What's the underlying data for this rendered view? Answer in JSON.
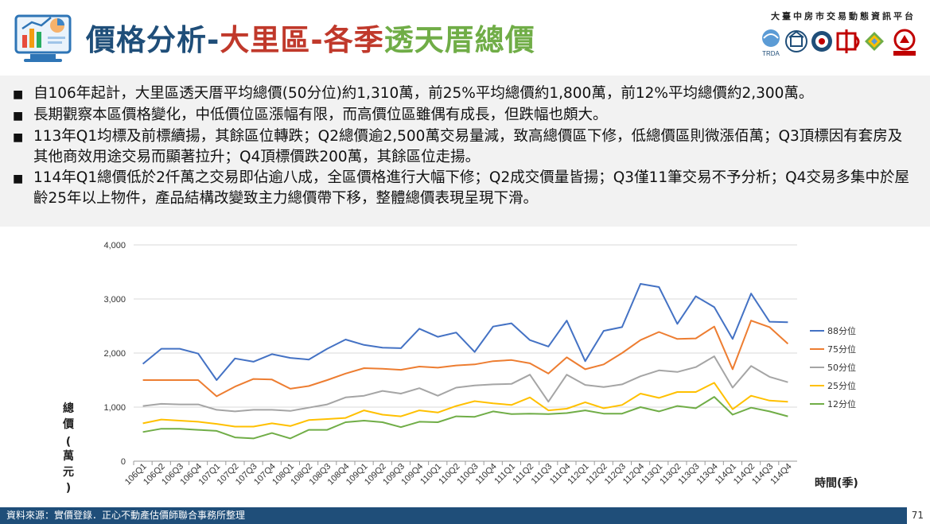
{
  "header": {
    "title_part1": "價格分析-",
    "title_part2": "大里區-各季",
    "title_part3": "透天厝總價",
    "platform": "大臺中房市交易動態資訊平台",
    "logo_trda": "TRDA"
  },
  "bullets": [
    "自106年起計，大里區透天厝平均總價(50分位)約1,310萬，前25%平均總價約1,800萬，前12%平均總價約2,300萬。",
    "長期觀察本區價格變化，中低價位區漲幅有限，而高價位區雖偶有成長，但跌幅也頗大。",
    "113年Q1均標及前標續揚，其餘區位轉跌；Q2總價逾2,500萬交易量減，致高總價區下修，低總價區則微漲佰萬；Q3頂標因有套房及其他商效用途交易而顯著拉升；Q4頂標價跌200萬，其餘區位走揚。",
    "114年Q1總價低於2仟萬之交易即佔逾八成，全區價格進行大幅下修；Q2成交價量皆揚；Q3僅11筆交易不予分析；Q4交易多集中於屋齡25年以上物件，產品結構改變致主力總價帶下移，整體總價表現呈現下滑。"
  ],
  "footer": {
    "source": "資料來源：實價登錄．正心不動產估價師聯合事務所整理",
    "page": "71"
  },
  "chart_data": {
    "type": "line",
    "ylabel": "總價(萬元)",
    "xlabel": "時間(季)",
    "ylim": [
      0,
      4000
    ],
    "yticks": [
      "0",
      "1,000",
      "2,000",
      "3,000",
      "4,000"
    ],
    "grid": "horizontal",
    "legend_position": "right",
    "categories": [
      "106Q1",
      "106Q2",
      "106Q3",
      "106Q4",
      "107Q1",
      "107Q2",
      "107Q3",
      "107Q4",
      "108Q1",
      "108Q2",
      "108Q3",
      "108Q4",
      "109Q1",
      "109Q2",
      "109Q3",
      "109Q4",
      "110Q1",
      "110Q2",
      "110Q3",
      "110Q4",
      "111Q1",
      "111Q2",
      "111Q3",
      "111Q4",
      "112Q1",
      "112Q2",
      "112Q3",
      "112Q4",
      "113Q1",
      "113Q2",
      "113Q3",
      "113Q4",
      "114Q1",
      "114Q2",
      "114Q3",
      "114Q4"
    ],
    "series": [
      {
        "name": "88分位",
        "color": "#4472c4",
        "values": [
          1800,
          2080,
          2080,
          1990,
          1500,
          1900,
          1840,
          1980,
          1910,
          1880,
          2080,
          2250,
          2150,
          2100,
          2090,
          2450,
          2300,
          2380,
          2020,
          2490,
          2550,
          2240,
          2120,
          2600,
          1850,
          2410,
          2480,
          3280,
          3220,
          2540,
          3050,
          2850,
          2260,
          3100,
          2580,
          2570
        ]
      },
      {
        "name": "75分位",
        "color": "#ed7d31",
        "values": [
          1500,
          1500,
          1500,
          1500,
          1200,
          1380,
          1520,
          1510,
          1340,
          1390,
          1500,
          1620,
          1720,
          1710,
          1690,
          1750,
          1730,
          1770,
          1790,
          1850,
          1870,
          1810,
          1620,
          1920,
          1700,
          1790,
          2000,
          2240,
          2390,
          2260,
          2270,
          2490,
          1700,
          2600,
          2480,
          2170
        ]
      },
      {
        "name": "50分位",
        "color": "#a5a5a5",
        "values": [
          1020,
          1060,
          1050,
          1050,
          950,
          920,
          950,
          950,
          930,
          990,
          1050,
          1180,
          1210,
          1300,
          1250,
          1350,
          1210,
          1360,
          1400,
          1420,
          1430,
          1600,
          1100,
          1600,
          1410,
          1370,
          1420,
          1570,
          1680,
          1650,
          1740,
          1940,
          1360,
          1760,
          1560,
          1460
        ]
      },
      {
        "name": "25分位",
        "color": "#ffc000",
        "values": [
          700,
          770,
          750,
          730,
          690,
          640,
          640,
          700,
          650,
          760,
          780,
          800,
          940,
          860,
          830,
          940,
          900,
          1020,
          1110,
          1070,
          1040,
          1180,
          940,
          970,
          1090,
          980,
          1040,
          1250,
          1170,
          1280,
          1280,
          1450,
          960,
          1210,
          1120,
          1100
        ]
      },
      {
        "name": "12分位",
        "color": "#70ad47",
        "values": [
          540,
          600,
          600,
          580,
          560,
          440,
          420,
          520,
          420,
          580,
          580,
          720,
          750,
          720,
          630,
          730,
          720,
          830,
          820,
          920,
          870,
          880,
          870,
          890,
          940,
          880,
          880,
          1000,
          920,
          1020,
          980,
          1190,
          860,
          990,
          920,
          830
        ]
      }
    ]
  }
}
